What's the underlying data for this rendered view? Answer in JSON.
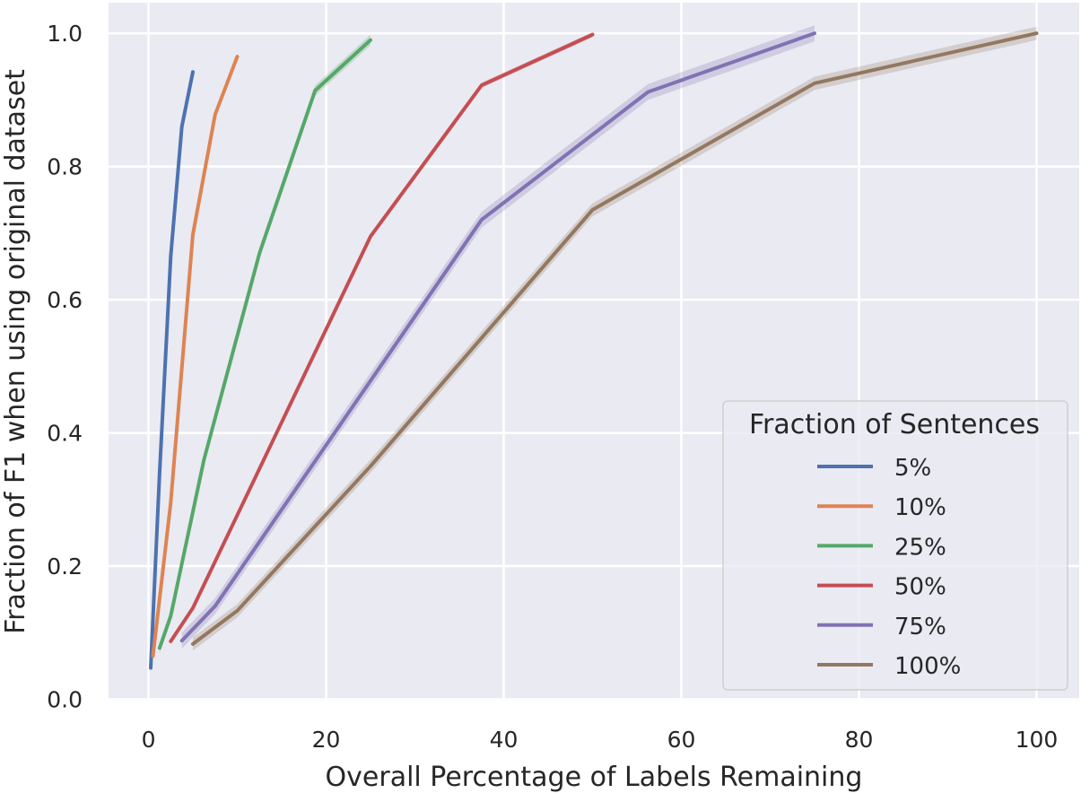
{
  "chart_data": {
    "type": "line",
    "xlabel": "Overall Percentage of Labels Remaining",
    "ylabel": "Fraction of F1 when using original dataset",
    "xlim": [
      -4.5,
      104.8
    ],
    "ylim": [
      -0.002,
      1.046
    ],
    "xticks": [
      "0",
      "20",
      "40",
      "60",
      "80",
      "100"
    ],
    "yticks": [
      "0.0",
      "0.2",
      "0.4",
      "0.6",
      "0.8",
      "1.0"
    ],
    "grid": true,
    "legend": {
      "title": "Fraction of Sentences",
      "placement": "lower-right"
    },
    "series": [
      {
        "name": "5%",
        "color": "#4c72b0",
        "x": [
          0.25,
          1.25,
          2.5,
          3.75,
          5
        ],
        "y": [
          0.047,
          0.34,
          0.665,
          0.86,
          0.942
        ],
        "band": 0.004
      },
      {
        "name": "10%",
        "color": "#dd8452",
        "x": [
          0.5,
          2.5,
          5,
          7.5,
          10
        ],
        "y": [
          0.065,
          0.295,
          0.698,
          0.878,
          0.965
        ],
        "band": 0.004
      },
      {
        "name": "25%",
        "color": "#55a868",
        "x": [
          1.25,
          2.5,
          6.25,
          12.5,
          18.75,
          25
        ],
        "y": [
          0.077,
          0.125,
          0.36,
          0.67,
          0.914,
          0.99
        ],
        "band": 0.008
      },
      {
        "name": "50%",
        "color": "#c44e52",
        "x": [
          2.5,
          5,
          25,
          37.5,
          50
        ],
        "y": [
          0.087,
          0.137,
          0.695,
          0.922,
          0.998
        ],
        "band": 0.004
      },
      {
        "name": "75%",
        "color": "#8172b3",
        "x": [
          3.75,
          7.5,
          37.5,
          56.25,
          75
        ],
        "y": [
          0.088,
          0.14,
          0.72,
          0.912,
          1.0
        ],
        "band": 0.012
      },
      {
        "name": "100%",
        "color": "#937860",
        "x": [
          5,
          10,
          25,
          50,
          75,
          100
        ],
        "y": [
          0.083,
          0.133,
          0.35,
          0.735,
          0.925,
          1.0
        ],
        "band": 0.01
      }
    ]
  }
}
